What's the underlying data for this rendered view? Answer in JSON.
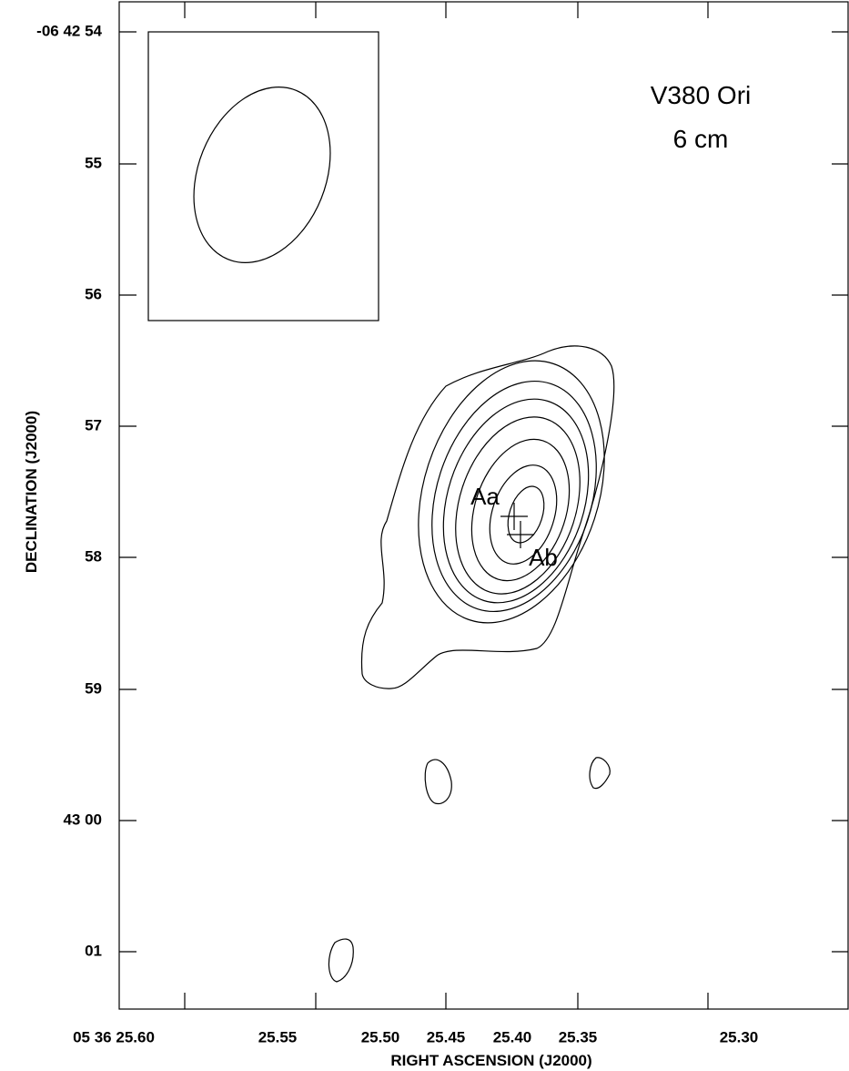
{
  "figure": {
    "title": "V380 Ori",
    "subtitle": "6 cm",
    "x_axis": {
      "label": "RIGHT ASCENSION (J2000)",
      "ticks": [
        "05 36 25.60",
        "25.55",
        "25.50",
        "25.45",
        "25.40",
        "25.35",
        "25.30"
      ]
    },
    "y_axis": {
      "label": "DECLINATION (J2000)",
      "ticks": [
        "-06 42 54",
        "55",
        "56",
        "57",
        "58",
        "59",
        "43 00",
        "01"
      ]
    },
    "annotations": [
      "Aa",
      "Ab"
    ]
  }
}
